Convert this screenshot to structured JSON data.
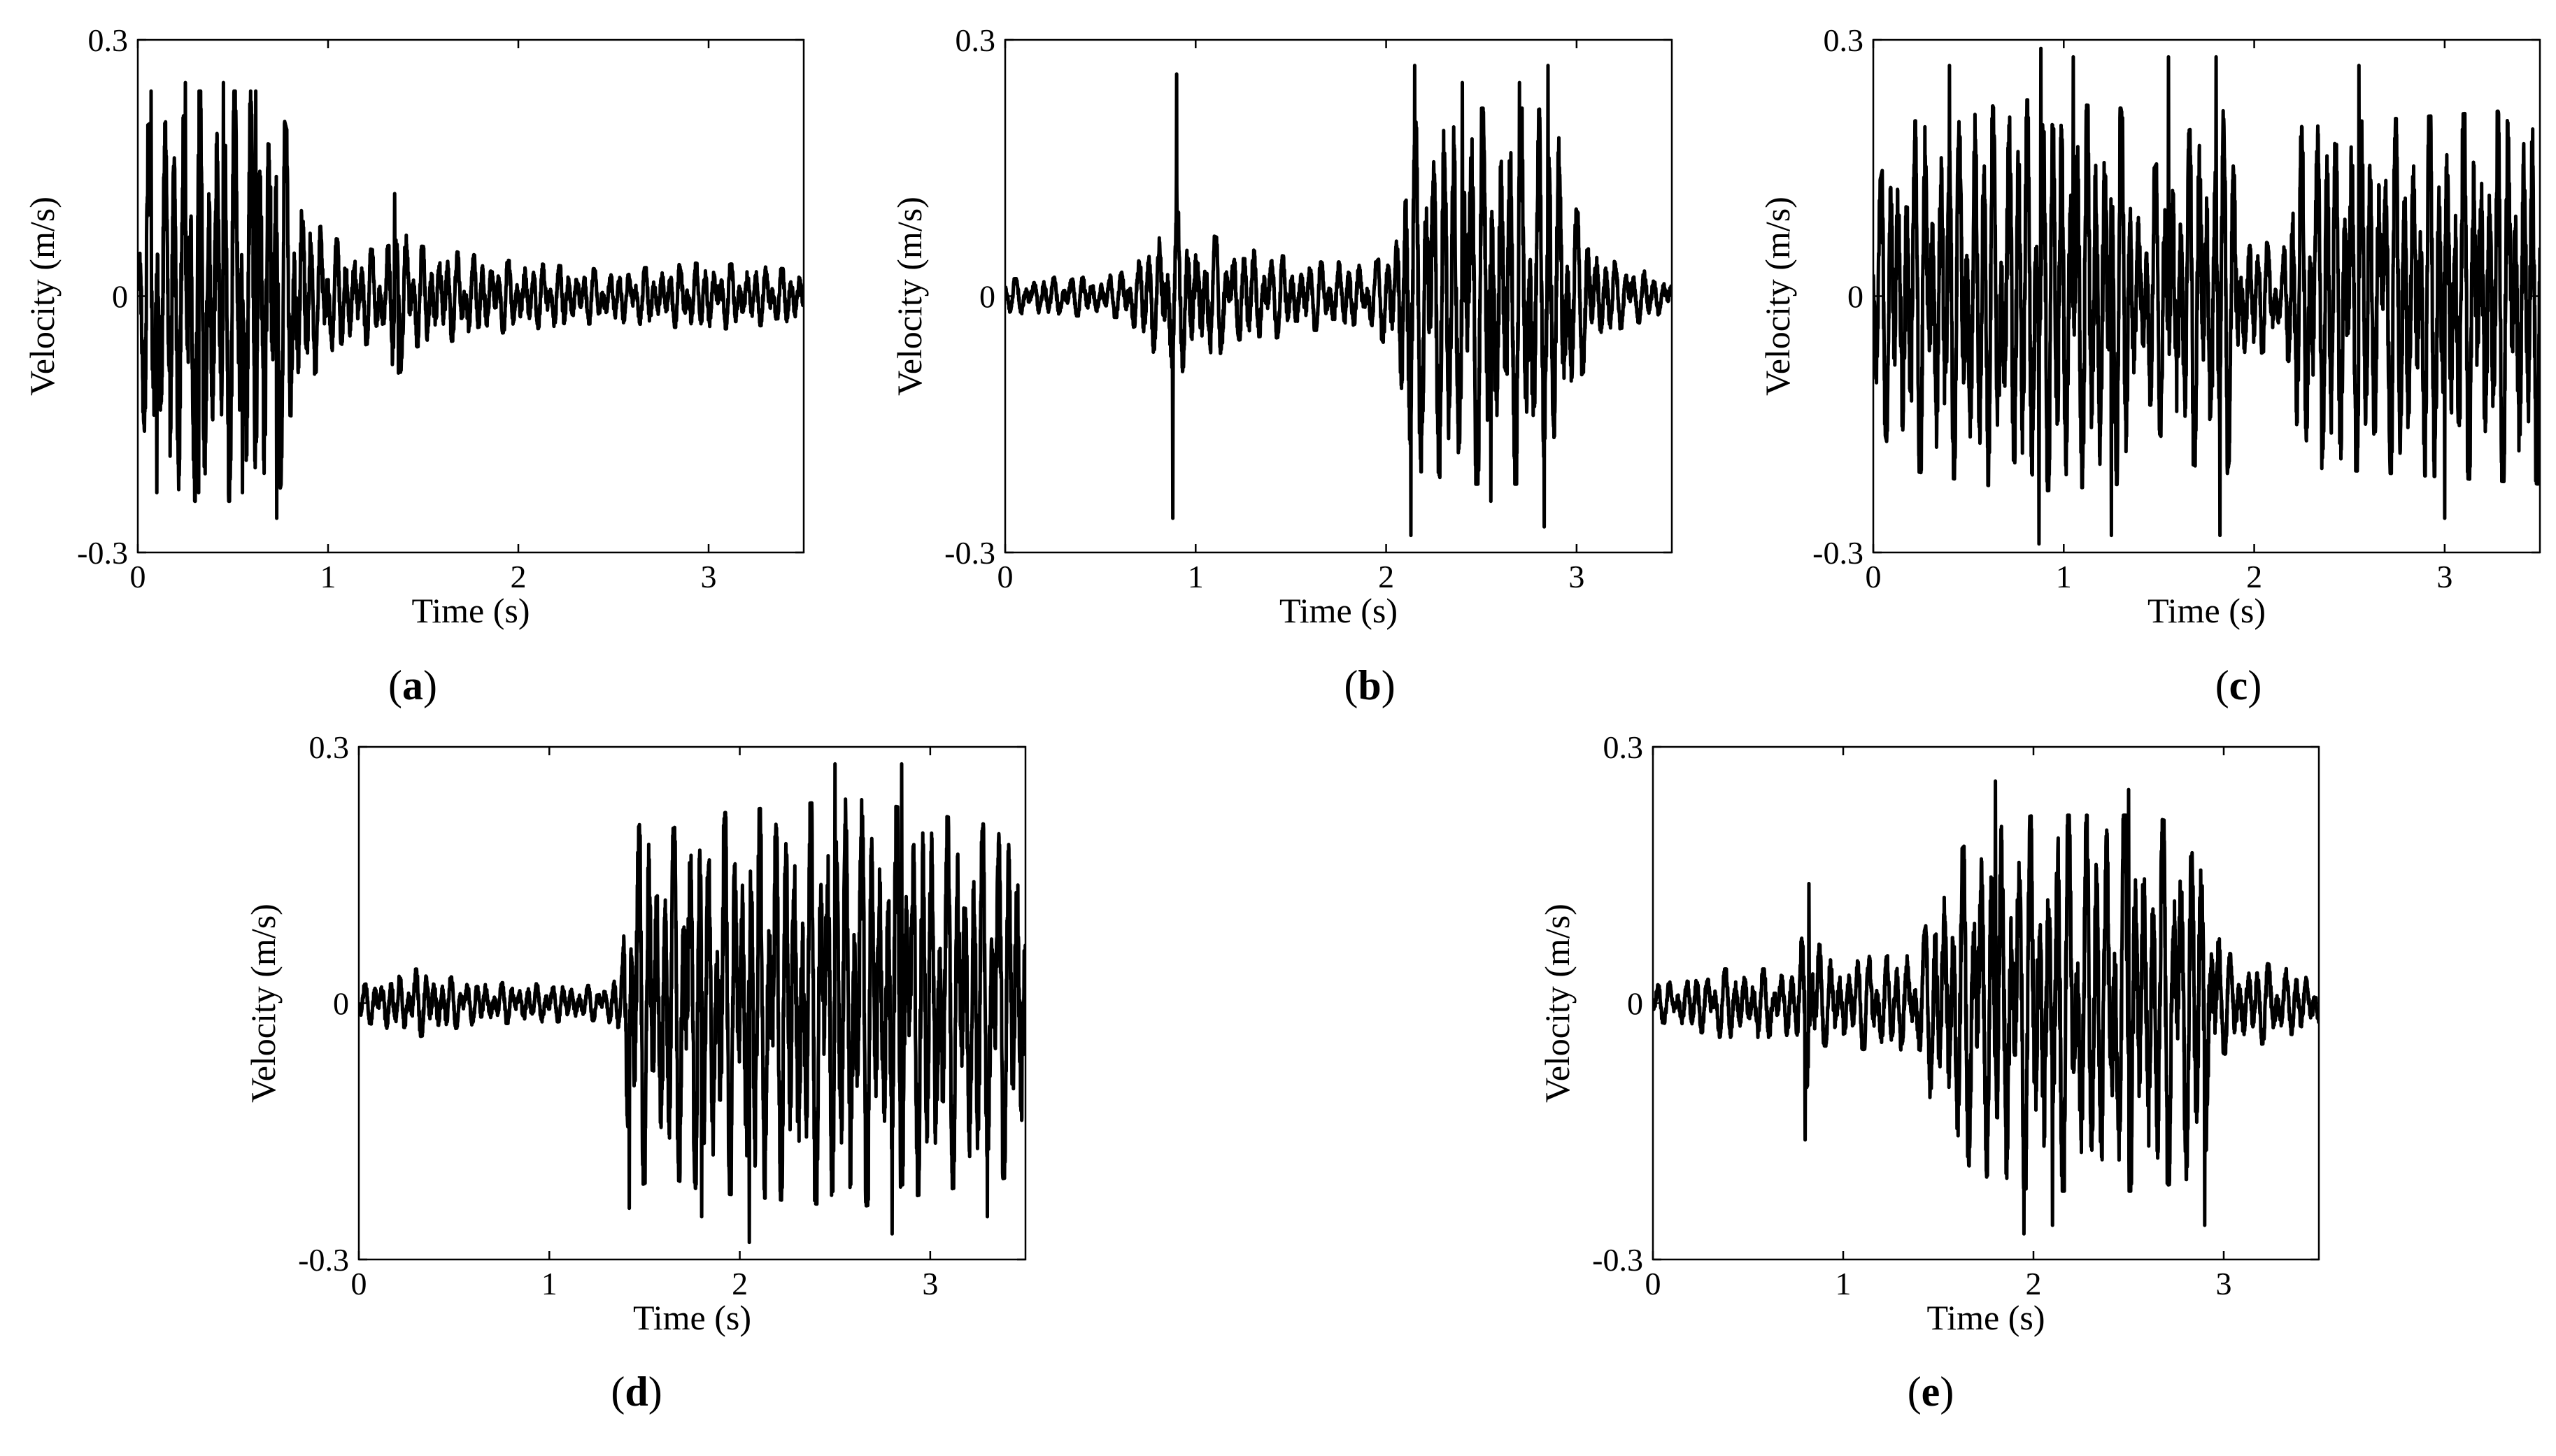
{
  "figure": {
    "panels": [
      {
        "id": "a",
        "label": "a"
      },
      {
        "id": "b",
        "label": "b"
      },
      {
        "id": "c",
        "label": "c"
      },
      {
        "id": "d",
        "label": "d"
      },
      {
        "id": "e",
        "label": "e"
      }
    ]
  },
  "colors": {
    "trace": "#000000",
    "axes": "#000000",
    "background": "#ffffff"
  },
  "chart_data": [
    {
      "id": "a",
      "type": "line",
      "title": "",
      "xlabel": "Time (s)",
      "ylabel": "Velocity (m/s)",
      "xlim": [
        0,
        3.5
      ],
      "ylim": [
        -0.3,
        0.3
      ],
      "xticks": [
        0,
        1,
        2,
        3
      ],
      "xtick_labels": [
        "0",
        "1",
        "2",
        "3"
      ],
      "yticks": [
        -0.3,
        0,
        0.3
      ],
      "ytick_labels": [
        "-0.3",
        "0",
        "0.3"
      ],
      "grid": false,
      "series": [
        {
          "color": "#000000",
          "envelope": [
            [
              0,
              0.06
            ],
            [
              0.05,
              0.2
            ],
            [
              0.3,
              0.24
            ],
            [
              0.6,
              0.24
            ],
            [
              0.72,
              0.25
            ],
            [
              0.8,
              0.18
            ],
            [
              0.9,
              0.1
            ],
            [
              1.0,
              0.07
            ],
            [
              1.3,
              0.05
            ],
            [
              1.35,
              0.11
            ],
            [
              1.45,
              0.06
            ],
            [
              2.0,
              0.04
            ],
            [
              2.5,
              0.03
            ],
            [
              3.0,
              0.04
            ],
            [
              3.5,
              0.03
            ]
          ],
          "peaks": [
            {
              "x": 0.07,
              "y": 0.24
            },
            {
              "x": 0.1,
              "y": -0.23
            },
            {
              "x": 0.25,
              "y": 0.25
            },
            {
              "x": 0.32,
              "y": -0.23
            },
            {
              "x": 0.45,
              "y": 0.25
            },
            {
              "x": 0.55,
              "y": -0.23
            },
            {
              "x": 0.62,
              "y": 0.24
            },
            {
              "x": 0.73,
              "y": 0.26
            },
            {
              "x": 0.73,
              "y": -0.26
            },
            {
              "x": 1.35,
              "y": 0.12
            },
            {
              "x": 1.37,
              "y": -0.09
            }
          ],
          "periods": [
            0.045,
            0.065,
            0.09
          ]
        }
      ]
    },
    {
      "id": "b",
      "type": "line",
      "title": "",
      "xlabel": "Time (s)",
      "ylabel": "Velocity (m/s)",
      "xlim": [
        0,
        3.5
      ],
      "ylim": [
        -0.3,
        0.3
      ],
      "xticks": [
        0,
        1,
        2,
        3
      ],
      "xtick_labels": [
        "0",
        "1",
        "2",
        "3"
      ],
      "yticks": [
        -0.3,
        0,
        0.3
      ],
      "ytick_labels": [
        "-0.3",
        "0",
        "0.3"
      ],
      "grid": false,
      "series": [
        {
          "color": "#000000",
          "envelope": [
            [
              0,
              0.02
            ],
            [
              0.6,
              0.025
            ],
            [
              0.7,
              0.05
            ],
            [
              0.85,
              0.08
            ],
            [
              0.9,
              0.1
            ],
            [
              1.0,
              0.08
            ],
            [
              1.2,
              0.06
            ],
            [
              1.6,
              0.04
            ],
            [
              1.95,
              0.04
            ],
            [
              2.05,
              0.08
            ],
            [
              2.1,
              0.2
            ],
            [
              2.4,
              0.22
            ],
            [
              2.8,
              0.22
            ],
            [
              2.9,
              0.2
            ],
            [
              3.0,
              0.1
            ],
            [
              3.2,
              0.04
            ],
            [
              3.5,
              0.02
            ]
          ],
          "peaks": [
            {
              "x": 0.9,
              "y": 0.26
            },
            {
              "x": 0.88,
              "y": -0.26
            },
            {
              "x": 2.15,
              "y": 0.27
            },
            {
              "x": 2.13,
              "y": -0.28
            },
            {
              "x": 2.4,
              "y": 0.25
            },
            {
              "x": 2.55,
              "y": -0.24
            },
            {
              "x": 2.7,
              "y": 0.25
            },
            {
              "x": 2.85,
              "y": 0.27
            },
            {
              "x": 2.83,
              "y": -0.27
            }
          ],
          "periods": [
            0.05,
            0.07,
            0.095
          ]
        }
      ]
    },
    {
      "id": "c",
      "type": "line",
      "title": "",
      "xlabel": "Time (s)",
      "ylabel": "Velocity (m/s)",
      "xlim": [
        0,
        3.5
      ],
      "ylim": [
        -0.3,
        0.3
      ],
      "xticks": [
        0,
        1,
        2,
        3
      ],
      "xtick_labels": [
        "0",
        "1",
        "2",
        "3"
      ],
      "yticks": [
        -0.3,
        0,
        0.3
      ],
      "ytick_labels": [
        "-0.3",
        "0",
        "0.3"
      ],
      "grid": false,
      "series": [
        {
          "color": "#000000",
          "envelope": [
            [
              0,
              0.1
            ],
            [
              0.1,
              0.2
            ],
            [
              0.8,
              0.23
            ],
            [
              1.3,
              0.22
            ],
            [
              1.4,
              0.12
            ],
            [
              1.55,
              0.18
            ],
            [
              1.85,
              0.22
            ],
            [
              1.95,
              0.08
            ],
            [
              2.15,
              0.05
            ],
            [
              2.25,
              0.2
            ],
            [
              3.5,
              0.22
            ]
          ],
          "peaks": [
            {
              "x": 0.88,
              "y": 0.29
            },
            {
              "x": 0.87,
              "y": -0.29
            },
            {
              "x": 1.05,
              "y": 0.28
            },
            {
              "x": 1.25,
              "y": -0.28
            },
            {
              "x": 1.55,
              "y": 0.28
            },
            {
              "x": 1.8,
              "y": 0.28
            },
            {
              "x": 1.82,
              "y": -0.28
            },
            {
              "x": 0.4,
              "y": 0.27
            },
            {
              "x": 2.55,
              "y": 0.27
            },
            {
              "x": 3.0,
              "y": -0.26
            }
          ],
          "periods": [
            0.045,
            0.06,
            0.085
          ]
        }
      ]
    },
    {
      "id": "d",
      "type": "line",
      "title": "",
      "xlabel": "Time (s)",
      "ylabel": "Velocity (m/s)",
      "xlim": [
        0,
        3.5
      ],
      "ylim": [
        -0.3,
        0.3
      ],
      "xticks": [
        0,
        1,
        2,
        3
      ],
      "xtick_labels": [
        "0",
        "1",
        "2",
        "3"
      ],
      "yticks": [
        -0.3,
        0,
        0.3
      ],
      "ytick_labels": [
        "-0.3",
        "0",
        "0.3"
      ],
      "grid": false,
      "series": [
        {
          "color": "#000000",
          "envelope": [
            [
              0,
              0.02
            ],
            [
              0.3,
              0.04
            ],
            [
              0.6,
              0.025
            ],
            [
              1.3,
              0.02
            ],
            [
              1.38,
              0.04
            ],
            [
              1.42,
              0.22
            ],
            [
              1.6,
              0.2
            ],
            [
              1.8,
              0.22
            ],
            [
              2.6,
              0.24
            ],
            [
              3.5,
              0.2
            ]
          ],
          "peaks": [
            {
              "x": 1.42,
              "y": 0.24
            },
            {
              "x": 1.42,
              "y": -0.24
            },
            {
              "x": 2.05,
              "y": 0.29
            },
            {
              "x": 2.05,
              "y": -0.28
            },
            {
              "x": 2.5,
              "y": 0.28
            },
            {
              "x": 2.85,
              "y": 0.28
            },
            {
              "x": 2.8,
              "y": -0.27
            },
            {
              "x": 1.8,
              "y": -0.25
            },
            {
              "x": 3.3,
              "y": -0.25
            }
          ],
          "periods": [
            0.045,
            0.065,
            0.09
          ]
        }
      ]
    },
    {
      "id": "e",
      "type": "line",
      "title": "",
      "xlabel": "Time (s)",
      "ylabel": "Velocity (m/s)",
      "xlim": [
        0,
        3.5
      ],
      "ylim": [
        -0.3,
        0.3
      ],
      "xticks": [
        0,
        1,
        2,
        3
      ],
      "xtick_labels": [
        "0",
        "1",
        "2",
        "3"
      ],
      "yticks": [
        -0.3,
        0,
        0.3
      ],
      "ytick_labels": [
        "-0.3",
        "0",
        "0.3"
      ],
      "grid": false,
      "series": [
        {
          "color": "#000000",
          "envelope": [
            [
              0,
              0.02
            ],
            [
              0.35,
              0.04
            ],
            [
              0.75,
              0.04
            ],
            [
              0.82,
              0.12
            ],
            [
              0.9,
              0.05
            ],
            [
              1.4,
              0.06
            ],
            [
              1.5,
              0.15
            ],
            [
              1.7,
              0.2
            ],
            [
              2.0,
              0.22
            ],
            [
              2.6,
              0.22
            ],
            [
              2.9,
              0.2
            ],
            [
              3.0,
              0.06
            ],
            [
              3.5,
              0.03
            ]
          ],
          "peaks": [
            {
              "x": 0.82,
              "y": 0.14
            },
            {
              "x": 0.8,
              "y": -0.16
            },
            {
              "x": 1.95,
              "y": 0.28
            },
            {
              "x": 1.95,
              "y": -0.27
            },
            {
              "x": 2.1,
              "y": -0.26
            },
            {
              "x": 2.5,
              "y": 0.25
            },
            {
              "x": 2.9,
              "y": 0.25
            },
            {
              "x": 2.9,
              "y": -0.26
            },
            {
              "x": 1.8,
              "y": 0.26
            }
          ],
          "periods": [
            0.05,
            0.07,
            0.095
          ]
        }
      ]
    }
  ]
}
